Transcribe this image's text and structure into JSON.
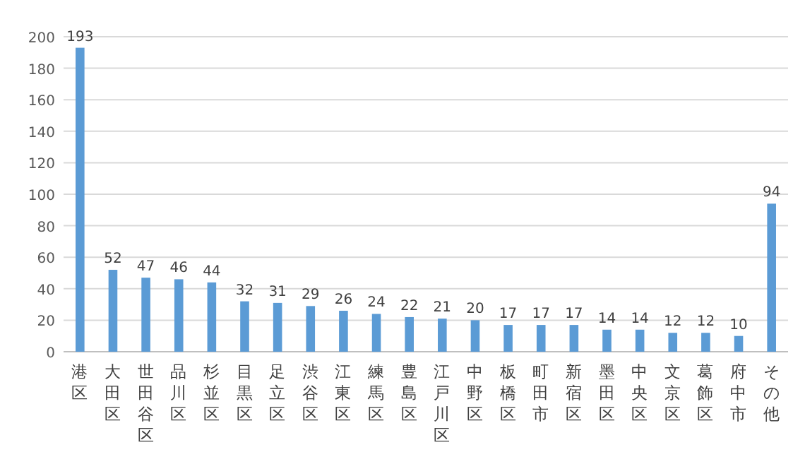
{
  "chart_data": {
    "type": "bar",
    "categories": [
      "港区",
      "大田区",
      "世田谷区",
      "品川区",
      "杉並区",
      "目黒区",
      "足立区",
      "渋谷区",
      "江東区",
      "練馬区",
      "豊島区",
      "江戸川区",
      "中野区",
      "板橋区",
      "町田市",
      "新宿区",
      "墨田区",
      "中央区",
      "文京区",
      "葛飾区",
      "府中市",
      "その他"
    ],
    "values": [
      193,
      52,
      47,
      46,
      44,
      32,
      31,
      29,
      26,
      24,
      22,
      21,
      20,
      17,
      17,
      17,
      14,
      14,
      12,
      12,
      10,
      94
    ],
    "color": "#5b9bd5",
    "ylim": [
      0,
      200
    ],
    "yticks": [
      0,
      20,
      40,
      60,
      80,
      100,
      120,
      140,
      160,
      180,
      200
    ],
    "grid": "y",
    "data_labels": true
  }
}
